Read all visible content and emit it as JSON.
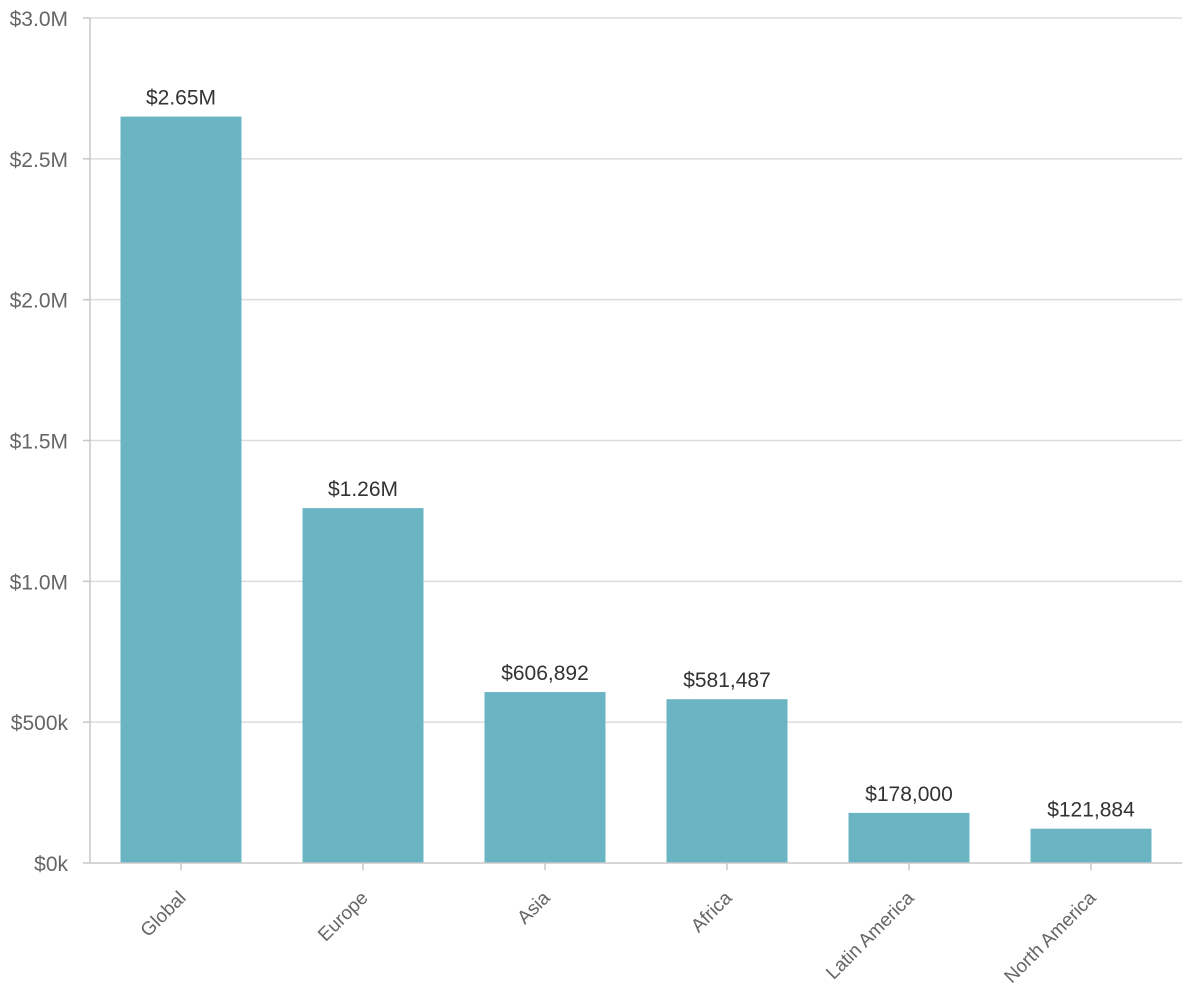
{
  "chart_data": {
    "type": "bar",
    "categories": [
      "Global",
      "Europe",
      "Asia",
      "Africa",
      "Latin America",
      "North America"
    ],
    "values": [
      2650000,
      1260000,
      606892,
      581487,
      178000,
      121884
    ],
    "data_labels": [
      "$2.65M",
      "$1.26M",
      "$606,892",
      "$581,487",
      "$178,000",
      "$121,884"
    ],
    "y_ticks": [
      {
        "value": 0,
        "label": "$0k"
      },
      {
        "value": 500000,
        "label": "$500k"
      },
      {
        "value": 1000000,
        "label": "$1.0M"
      },
      {
        "value": 1500000,
        "label": "$1.5M"
      },
      {
        "value": 2000000,
        "label": "$2.0M"
      },
      {
        "value": 2500000,
        "label": "$2.5M"
      },
      {
        "value": 3000000,
        "label": "$3.0M"
      }
    ],
    "ylim": [
      0,
      3000000
    ],
    "title": "",
    "xlabel": "",
    "ylabel": "",
    "grid": true,
    "bar_color": "#6bb4c3"
  }
}
